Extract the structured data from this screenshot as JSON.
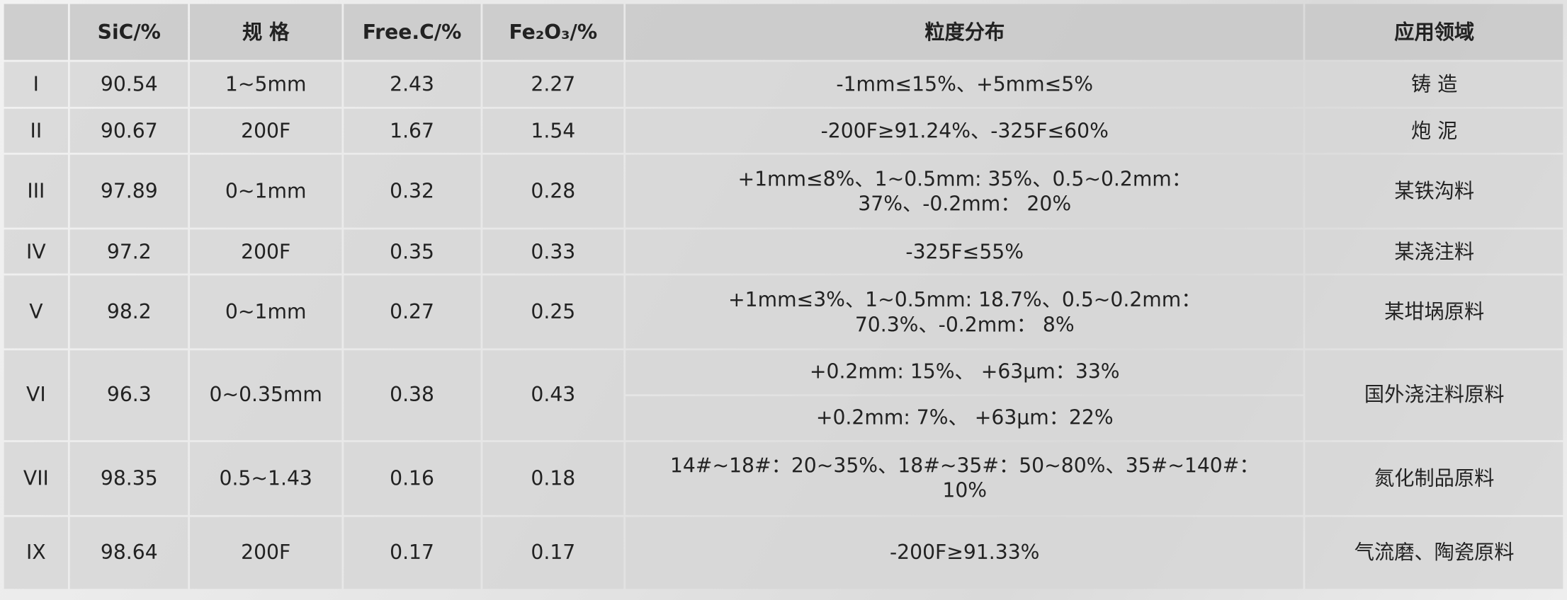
{
  "table": {
    "header": [
      "",
      "SiC/%",
      "规 格",
      "Free.C/%",
      "Fe₂O₃/%",
      "粒度分布",
      "应用领域"
    ],
    "rows": [
      {
        "cells": [
          "I",
          "90.54",
          "1~5mm",
          "2.43",
          "2.27"
        ],
        "distribution": [
          "-1mm≤15%、+5mm≤5%"
        ],
        "application": "铸 造"
      },
      {
        "cells": [
          "II",
          "90.67",
          "200F",
          "1.67",
          "1.54"
        ],
        "distribution": [
          "-200F≥91.24%、-325F≤60%"
        ],
        "application": "炮 泥"
      },
      {
        "cells": [
          "III",
          "97.89",
          "0~1mm",
          "0.32",
          "0.28"
        ],
        "distribution": [
          "+1mm≤8%、1~0.5mm: 35%、0.5~0.2mm：37%、-0.2mm： 20%"
        ],
        "application": "某铁沟料"
      },
      {
        "cells": [
          "IV",
          "97.2",
          "200F",
          "0.35",
          "0.33"
        ],
        "distribution": [
          "-325F≤55%"
        ],
        "application": "某浇注料"
      },
      {
        "cells": [
          "V",
          "98.2",
          "0~1mm",
          "0.27",
          "0.25"
        ],
        "distribution": [
          "+1mm≤3%、1~0.5mm: 18.7%、0.5~0.2mm：70.3%、-0.2mm： 8%"
        ],
        "application": "某坩埚原料"
      },
      {
        "cells": [
          "VI",
          "96.3",
          "0~0.35mm",
          "0.38",
          "0.43"
        ],
        "distribution": [
          "+0.2mm: 15%、 +63μm：33%",
          "+0.2mm: 7%、 +63μm：22%"
        ],
        "application": "国外浇注料原料"
      },
      {
        "cells": [
          "VII",
          "98.35",
          "0.5~1.43",
          "0.16",
          "0.18"
        ],
        "distribution": [
          "14#~18#：20~35%、18#~35#：50~80%、35#~140#：10%"
        ],
        "application": "氮化制品原料"
      },
      {
        "cells": [
          "IX",
          "98.64",
          "200F",
          "0.17",
          "0.17"
        ],
        "distribution": [
          "-200F≥91.33%"
        ],
        "application": "气流磨、陶瓷原料"
      }
    ]
  }
}
